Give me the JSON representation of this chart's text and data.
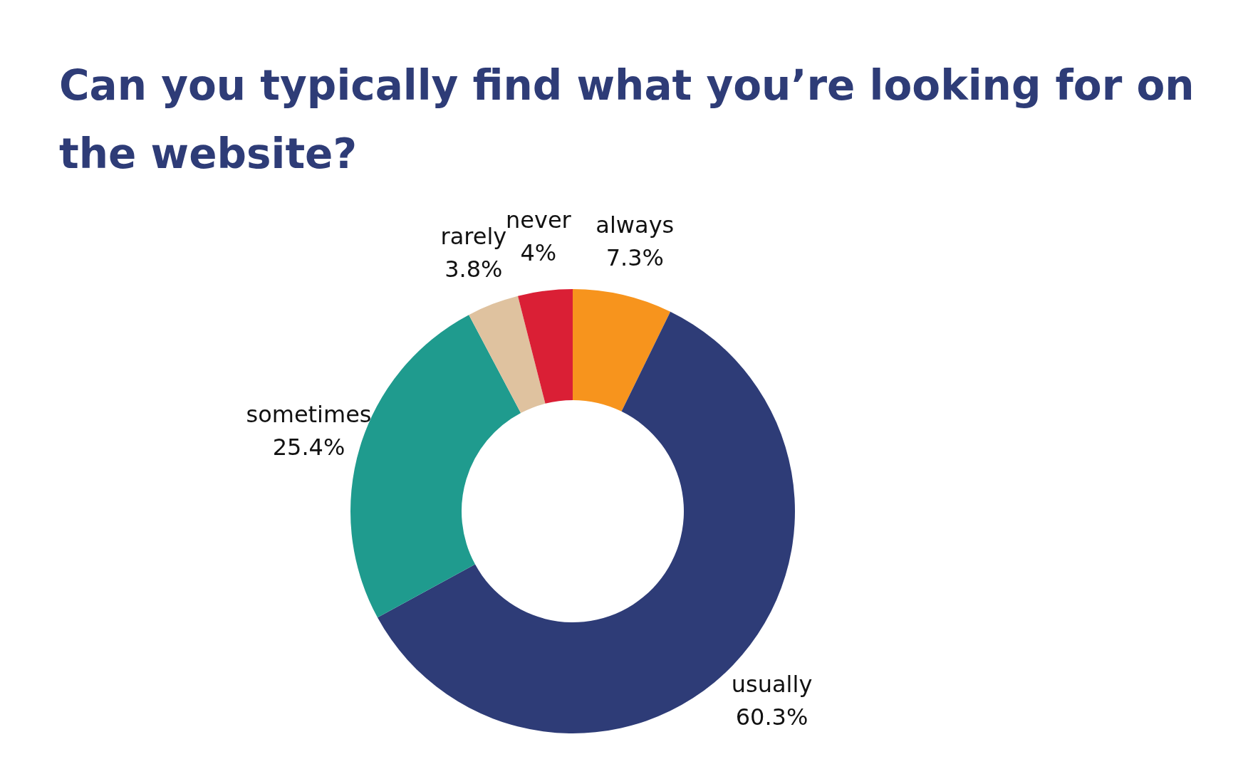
{
  "chart_data": {
    "type": "donut",
    "title": "Can you typically find what you’re looking for on the website?",
    "categories": [
      "always",
      "usually",
      "sometimes",
      "rarely",
      "never"
    ],
    "values": [
      7.3,
      60.3,
      25.4,
      3.8,
      4
    ],
    "value_labels": [
      "7.3%",
      "60.3%",
      "25.4%",
      "3.8%",
      "4%"
    ],
    "colors": [
      "#f7941d",
      "#2e3c77",
      "#1f9b8e",
      "#dfc29f",
      "#da1f35"
    ],
    "legend": false
  }
}
